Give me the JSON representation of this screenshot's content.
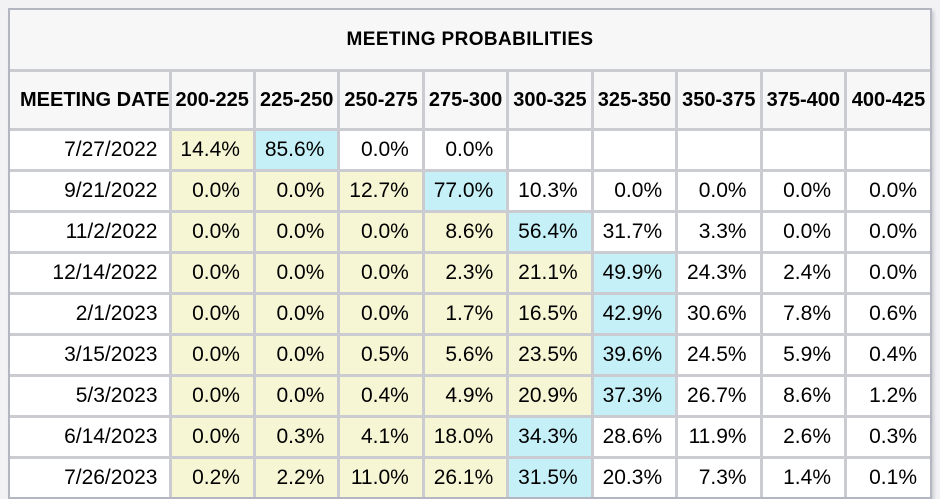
{
  "title": "MEETING PROBABILITIES",
  "table": {
    "date_header": "MEETING DATE",
    "range_headers": [
      "200-225",
      "225-250",
      "250-275",
      "275-300",
      "300-325",
      "325-350",
      "350-375",
      "375-400",
      "400-425"
    ],
    "rows": [
      {
        "date": "7/27/2022",
        "cells": [
          {
            "value": "14.4%",
            "bg": "yellow"
          },
          {
            "value": "85.6%",
            "bg": "cyan"
          },
          {
            "value": "0.0%",
            "bg": "white"
          },
          {
            "value": "0.0%",
            "bg": "white"
          },
          {
            "value": "",
            "bg": "white"
          },
          {
            "value": "",
            "bg": "white"
          },
          {
            "value": "",
            "bg": "white"
          },
          {
            "value": "",
            "bg": "white"
          },
          {
            "value": "",
            "bg": "white"
          }
        ]
      },
      {
        "date": "9/21/2022",
        "cells": [
          {
            "value": "0.0%",
            "bg": "yellow"
          },
          {
            "value": "0.0%",
            "bg": "yellow"
          },
          {
            "value": "12.7%",
            "bg": "yellow"
          },
          {
            "value": "77.0%",
            "bg": "cyan"
          },
          {
            "value": "10.3%",
            "bg": "white"
          },
          {
            "value": "0.0%",
            "bg": "white"
          },
          {
            "value": "0.0%",
            "bg": "white"
          },
          {
            "value": "0.0%",
            "bg": "white"
          },
          {
            "value": "0.0%",
            "bg": "white"
          }
        ]
      },
      {
        "date": "11/2/2022",
        "cells": [
          {
            "value": "0.0%",
            "bg": "yellow"
          },
          {
            "value": "0.0%",
            "bg": "yellow"
          },
          {
            "value": "0.0%",
            "bg": "yellow"
          },
          {
            "value": "8.6%",
            "bg": "yellow"
          },
          {
            "value": "56.4%",
            "bg": "cyan"
          },
          {
            "value": "31.7%",
            "bg": "white"
          },
          {
            "value": "3.3%",
            "bg": "white"
          },
          {
            "value": "0.0%",
            "bg": "white"
          },
          {
            "value": "0.0%",
            "bg": "white"
          }
        ]
      },
      {
        "date": "12/14/2022",
        "cells": [
          {
            "value": "0.0%",
            "bg": "yellow"
          },
          {
            "value": "0.0%",
            "bg": "yellow"
          },
          {
            "value": "0.0%",
            "bg": "yellow"
          },
          {
            "value": "2.3%",
            "bg": "yellow"
          },
          {
            "value": "21.1%",
            "bg": "yellow"
          },
          {
            "value": "49.9%",
            "bg": "cyan"
          },
          {
            "value": "24.3%",
            "bg": "white"
          },
          {
            "value": "2.4%",
            "bg": "white"
          },
          {
            "value": "0.0%",
            "bg": "white"
          }
        ]
      },
      {
        "date": "2/1/2023",
        "cells": [
          {
            "value": "0.0%",
            "bg": "yellow"
          },
          {
            "value": "0.0%",
            "bg": "yellow"
          },
          {
            "value": "0.0%",
            "bg": "yellow"
          },
          {
            "value": "1.7%",
            "bg": "yellow"
          },
          {
            "value": "16.5%",
            "bg": "yellow"
          },
          {
            "value": "42.9%",
            "bg": "cyan"
          },
          {
            "value": "30.6%",
            "bg": "white"
          },
          {
            "value": "7.8%",
            "bg": "white"
          },
          {
            "value": "0.6%",
            "bg": "white"
          }
        ]
      },
      {
        "date": "3/15/2023",
        "cells": [
          {
            "value": "0.0%",
            "bg": "yellow"
          },
          {
            "value": "0.0%",
            "bg": "yellow"
          },
          {
            "value": "0.5%",
            "bg": "yellow"
          },
          {
            "value": "5.6%",
            "bg": "yellow"
          },
          {
            "value": "23.5%",
            "bg": "yellow"
          },
          {
            "value": "39.6%",
            "bg": "cyan"
          },
          {
            "value": "24.5%",
            "bg": "white"
          },
          {
            "value": "5.9%",
            "bg": "white"
          },
          {
            "value": "0.4%",
            "bg": "white"
          }
        ]
      },
      {
        "date": "5/3/2023",
        "cells": [
          {
            "value": "0.0%",
            "bg": "yellow"
          },
          {
            "value": "0.0%",
            "bg": "yellow"
          },
          {
            "value": "0.4%",
            "bg": "yellow"
          },
          {
            "value": "4.9%",
            "bg": "yellow"
          },
          {
            "value": "20.9%",
            "bg": "yellow"
          },
          {
            "value": "37.3%",
            "bg": "cyan"
          },
          {
            "value": "26.7%",
            "bg": "white"
          },
          {
            "value": "8.6%",
            "bg": "white"
          },
          {
            "value": "1.2%",
            "bg": "white"
          }
        ]
      },
      {
        "date": "6/14/2023",
        "cells": [
          {
            "value": "0.0%",
            "bg": "yellow"
          },
          {
            "value": "0.3%",
            "bg": "yellow"
          },
          {
            "value": "4.1%",
            "bg": "yellow"
          },
          {
            "value": "18.0%",
            "bg": "yellow"
          },
          {
            "value": "34.3%",
            "bg": "cyan"
          },
          {
            "value": "28.6%",
            "bg": "white"
          },
          {
            "value": "11.9%",
            "bg": "white"
          },
          {
            "value": "2.6%",
            "bg": "white"
          },
          {
            "value": "0.3%",
            "bg": "white"
          }
        ]
      },
      {
        "date": "7/26/2023",
        "cells": [
          {
            "value": "0.2%",
            "bg": "yellow"
          },
          {
            "value": "2.2%",
            "bg": "yellow"
          },
          {
            "value": "11.0%",
            "bg": "yellow"
          },
          {
            "value": "26.1%",
            "bg": "yellow"
          },
          {
            "value": "31.5%",
            "bg": "cyan"
          },
          {
            "value": "20.3%",
            "bg": "white"
          },
          {
            "value": "7.3%",
            "bg": "white"
          },
          {
            "value": "1.4%",
            "bg": "white"
          },
          {
            "value": "0.1%",
            "bg": "white"
          }
        ]
      }
    ]
  },
  "colors": {
    "yellow": "#F6F6D5",
    "cyan": "#C6F0F7",
    "white": "#FFFFFF",
    "header_bg": "#F7F7F8",
    "grid_line": "#CACCD2",
    "frame_border": "#B4B7C1",
    "page_bg": "#F2F2F4",
    "text": "#000000"
  },
  "chart_data": {
    "type": "table",
    "title": "MEETING PROBABILITIES",
    "row_label": "MEETING DATE",
    "columns": [
      "200-225",
      "225-250",
      "250-275",
      "275-300",
      "300-325",
      "325-350",
      "350-375",
      "375-400",
      "400-425"
    ],
    "rows": [
      {
        "date": "7/27/2022",
        "values_pct": [
          14.4,
          85.6,
          0.0,
          0.0,
          null,
          null,
          null,
          null,
          null
        ],
        "max_column": "225-250"
      },
      {
        "date": "9/21/2022",
        "values_pct": [
          0.0,
          0.0,
          12.7,
          77.0,
          10.3,
          0.0,
          0.0,
          0.0,
          0.0
        ],
        "max_column": "275-300"
      },
      {
        "date": "11/2/2022",
        "values_pct": [
          0.0,
          0.0,
          0.0,
          8.6,
          56.4,
          31.7,
          3.3,
          0.0,
          0.0
        ],
        "max_column": "300-325"
      },
      {
        "date": "12/14/2022",
        "values_pct": [
          0.0,
          0.0,
          0.0,
          2.3,
          21.1,
          49.9,
          24.3,
          2.4,
          0.0
        ],
        "max_column": "325-350"
      },
      {
        "date": "2/1/2023",
        "values_pct": [
          0.0,
          0.0,
          0.0,
          1.7,
          16.5,
          42.9,
          30.6,
          7.8,
          0.6
        ],
        "max_column": "325-350"
      },
      {
        "date": "3/15/2023",
        "values_pct": [
          0.0,
          0.0,
          0.5,
          5.6,
          23.5,
          39.6,
          24.5,
          5.9,
          0.4
        ],
        "max_column": "325-350"
      },
      {
        "date": "5/3/2023",
        "values_pct": [
          0.0,
          0.0,
          0.4,
          4.9,
          20.9,
          37.3,
          26.7,
          8.6,
          1.2
        ],
        "max_column": "325-350"
      },
      {
        "date": "6/14/2023",
        "values_pct": [
          0.0,
          0.3,
          4.1,
          18.0,
          34.3,
          28.6,
          11.9,
          2.6,
          0.3
        ],
        "max_column": "300-325"
      },
      {
        "date": "7/26/2023",
        "values_pct": [
          0.2,
          2.2,
          11.0,
          26.1,
          31.5,
          20.3,
          7.3,
          1.4,
          0.1
        ],
        "max_column": "300-325"
      }
    ],
    "highlight_legend_inferred": "cyan = highest probability in row; pale yellow = columns at/below the modal range"
  }
}
